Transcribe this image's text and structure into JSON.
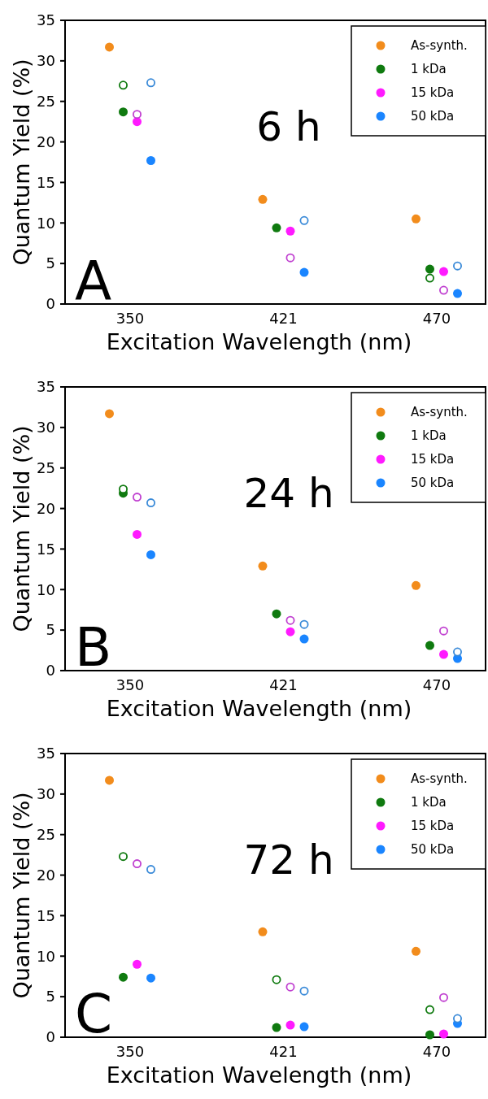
{
  "chart_data": [
    {
      "type": "scatter",
      "title": "6 h",
      "annotations": [
        "A"
      ],
      "xlabel": "Excitation Wavelength (nm)",
      "ylabel": "Quantum Yield (%)",
      "categories": [
        "350",
        "421",
        "470"
      ],
      "ylim": [
        0,
        35
      ],
      "yticks": [
        0,
        5,
        10,
        15,
        20,
        25,
        30,
        35
      ],
      "legend": "top right",
      "marker": "circle",
      "series": [
        {
          "name": "As-synth.",
          "color": "#f28c1c",
          "values": [
            31.7,
            12.9,
            10.5
          ]
        },
        {
          "name": "1 kDa",
          "color": "#0f7a0f",
          "values": [
            23.7,
            9.4,
            4.3
          ]
        },
        {
          "name": "15 kDa",
          "color": "#ff1aff",
          "values": [
            22.5,
            9.0,
            4.0
          ]
        },
        {
          "name": "50 kDa",
          "color": "#1a85ff",
          "values": [
            17.7,
            3.9,
            1.3
          ]
        },
        {
          "color": "#0f7a0f",
          "values": [
            27.0,
            null,
            3.2
          ]
        },
        {
          "color": "#c040d0",
          "values": [
            23.4,
            5.7,
            1.7
          ]
        },
        {
          "color": "#3a8ad8",
          "values": [
            27.3,
            10.3,
            4.7
          ]
        }
      ]
    },
    {
      "type": "scatter",
      "title": "24 h",
      "annotations": [
        "B"
      ],
      "xlabel": "Excitation Wavelength (nm)",
      "ylabel": "Quantum Yield (%)",
      "categories": [
        "350",
        "421",
        "470"
      ],
      "ylim": [
        0,
        35
      ],
      "yticks": [
        0,
        5,
        10,
        15,
        20,
        25,
        30,
        35
      ],
      "legend": "top right",
      "marker": "circle",
      "series": [
        {
          "name": "As-synth.",
          "color": "#f28c1c",
          "values": [
            31.7,
            12.9,
            10.5
          ]
        },
        {
          "name": "1 kDa",
          "color": "#0f7a0f",
          "values": [
            21.9,
            7.0,
            3.1
          ]
        },
        {
          "name": "15 kDa",
          "color": "#ff1aff",
          "values": [
            16.8,
            4.8,
            2.0
          ]
        },
        {
          "name": "50 kDa",
          "color": "#1a85ff",
          "values": [
            14.3,
            3.9,
            1.5
          ]
        },
        {
          "color": "#0f7a0f",
          "values": [
            22.4,
            null,
            null
          ]
        },
        {
          "color": "#c040d0",
          "values": [
            21.4,
            6.2,
            4.9
          ]
        },
        {
          "color": "#3a8ad8",
          "values": [
            20.7,
            5.7,
            2.3
          ]
        }
      ]
    },
    {
      "type": "scatter",
      "title": "72 h",
      "annotations": [
        "C"
      ],
      "xlabel": "Excitation Wavelength (nm)",
      "ylabel": "Quantum Yield (%)",
      "categories": [
        "350",
        "421",
        "470"
      ],
      "ylim": [
        0,
        35
      ],
      "yticks": [
        0,
        5,
        10,
        15,
        20,
        25,
        30,
        35
      ],
      "legend": "top right",
      "marker": "circle",
      "series": [
        {
          "name": "As-synth.",
          "color": "#f28c1c",
          "values": [
            31.7,
            13.0,
            10.6
          ]
        },
        {
          "name": "1 kDa",
          "color": "#0f7a0f",
          "values": [
            7.4,
            1.2,
            0.3
          ]
        },
        {
          "name": "15 kDa",
          "color": "#ff1aff",
          "values": [
            9.0,
            1.5,
            0.4
          ]
        },
        {
          "name": "50 kDa",
          "color": "#1a85ff",
          "values": [
            7.3,
            1.3,
            1.7
          ]
        },
        {
          "color": "#0f7a0f",
          "values": [
            22.3,
            7.1,
            3.4
          ]
        },
        {
          "color": "#c040d0",
          "values": [
            21.4,
            6.2,
            4.9
          ]
        },
        {
          "color": "#3a8ad8",
          "values": [
            20.7,
            5.7,
            2.3
          ]
        }
      ]
    }
  ]
}
